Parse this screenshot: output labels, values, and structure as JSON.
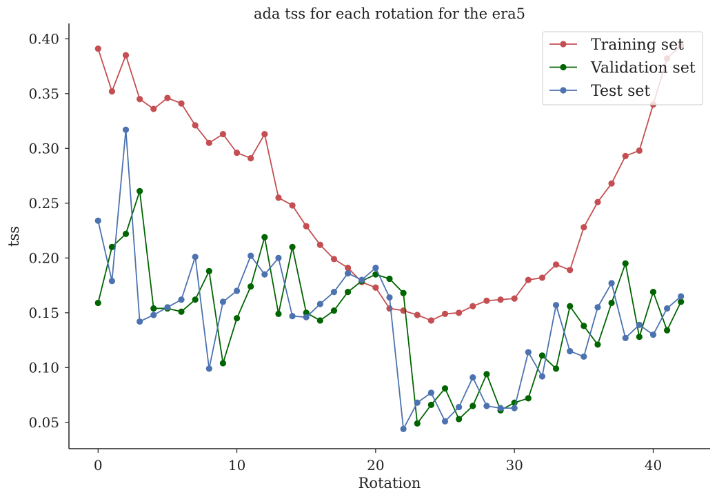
{
  "chart_data": {
    "type": "line",
    "title": "ada tss for each rotation for the era5",
    "xlabel": "Rotation",
    "ylabel": "tss",
    "xlim": [
      -2.1,
      44.1
    ],
    "ylim": [
      0.026,
      0.414
    ],
    "xticks": [
      0,
      10,
      20,
      30,
      40
    ],
    "xtick_labels": [
      "0",
      "10",
      "20",
      "30",
      "40"
    ],
    "yticks": [
      0.05,
      0.1,
      0.15,
      0.2,
      0.25,
      0.3,
      0.35,
      0.4
    ],
    "ytick_labels": [
      "0.05",
      "0.10",
      "0.15",
      "0.20",
      "0.25",
      "0.30",
      "0.35",
      "0.40"
    ],
    "grid": false,
    "legend_position": "top-right",
    "x": [
      0,
      1,
      2,
      3,
      4,
      5,
      6,
      7,
      8,
      9,
      10,
      11,
      12,
      13,
      14,
      15,
      16,
      17,
      18,
      19,
      20,
      21,
      22,
      23,
      24,
      25,
      26,
      27,
      28,
      29,
      30,
      31,
      32,
      33,
      34,
      35,
      36,
      37,
      38,
      39,
      40,
      41,
      42
    ],
    "series": [
      {
        "name": "Training set",
        "color": "#c44e52",
        "values": [
          0.391,
          0.352,
          0.385,
          0.345,
          0.336,
          0.346,
          0.341,
          0.321,
          0.305,
          0.313,
          0.296,
          0.291,
          0.313,
          0.255,
          0.248,
          0.229,
          0.212,
          0.199,
          0.191,
          0.178,
          0.173,
          0.154,
          0.152,
          0.148,
          0.143,
          0.149,
          0.15,
          0.156,
          0.161,
          0.162,
          0.163,
          0.18,
          0.182,
          0.194,
          0.189,
          0.228,
          0.251,
          0.268,
          0.293,
          0.298,
          0.34,
          0.382,
          0.394
        ]
      },
      {
        "name": "Validation set",
        "color": "#006400",
        "values": [
          0.159,
          0.21,
          0.222,
          0.261,
          0.154,
          0.154,
          0.151,
          0.162,
          0.188,
          0.104,
          0.145,
          0.174,
          0.219,
          0.149,
          0.21,
          0.15,
          0.143,
          0.152,
          0.169,
          0.179,
          0.185,
          0.181,
          0.168,
          0.049,
          0.066,
          0.081,
          0.053,
          0.065,
          0.094,
          0.061,
          0.068,
          0.072,
          0.111,
          0.099,
          0.156,
          0.138,
          0.121,
          0.159,
          0.195,
          0.128,
          0.169,
          0.134,
          0.16
        ]
      },
      {
        "name": "Test set",
        "color": "#4c72b0",
        "values": [
          0.234,
          0.179,
          0.317,
          0.142,
          0.148,
          0.155,
          0.162,
          0.201,
          0.099,
          0.16,
          0.17,
          0.202,
          0.185,
          0.2,
          0.147,
          0.146,
          0.158,
          0.169,
          0.186,
          0.18,
          0.191,
          0.164,
          0.044,
          0.068,
          0.077,
          0.051,
          0.064,
          0.091,
          0.065,
          0.063,
          0.063,
          0.114,
          0.092,
          0.157,
          0.115,
          0.11,
          0.155,
          0.177,
          0.127,
          0.139,
          0.13,
          0.154,
          0.165
        ]
      }
    ]
  }
}
